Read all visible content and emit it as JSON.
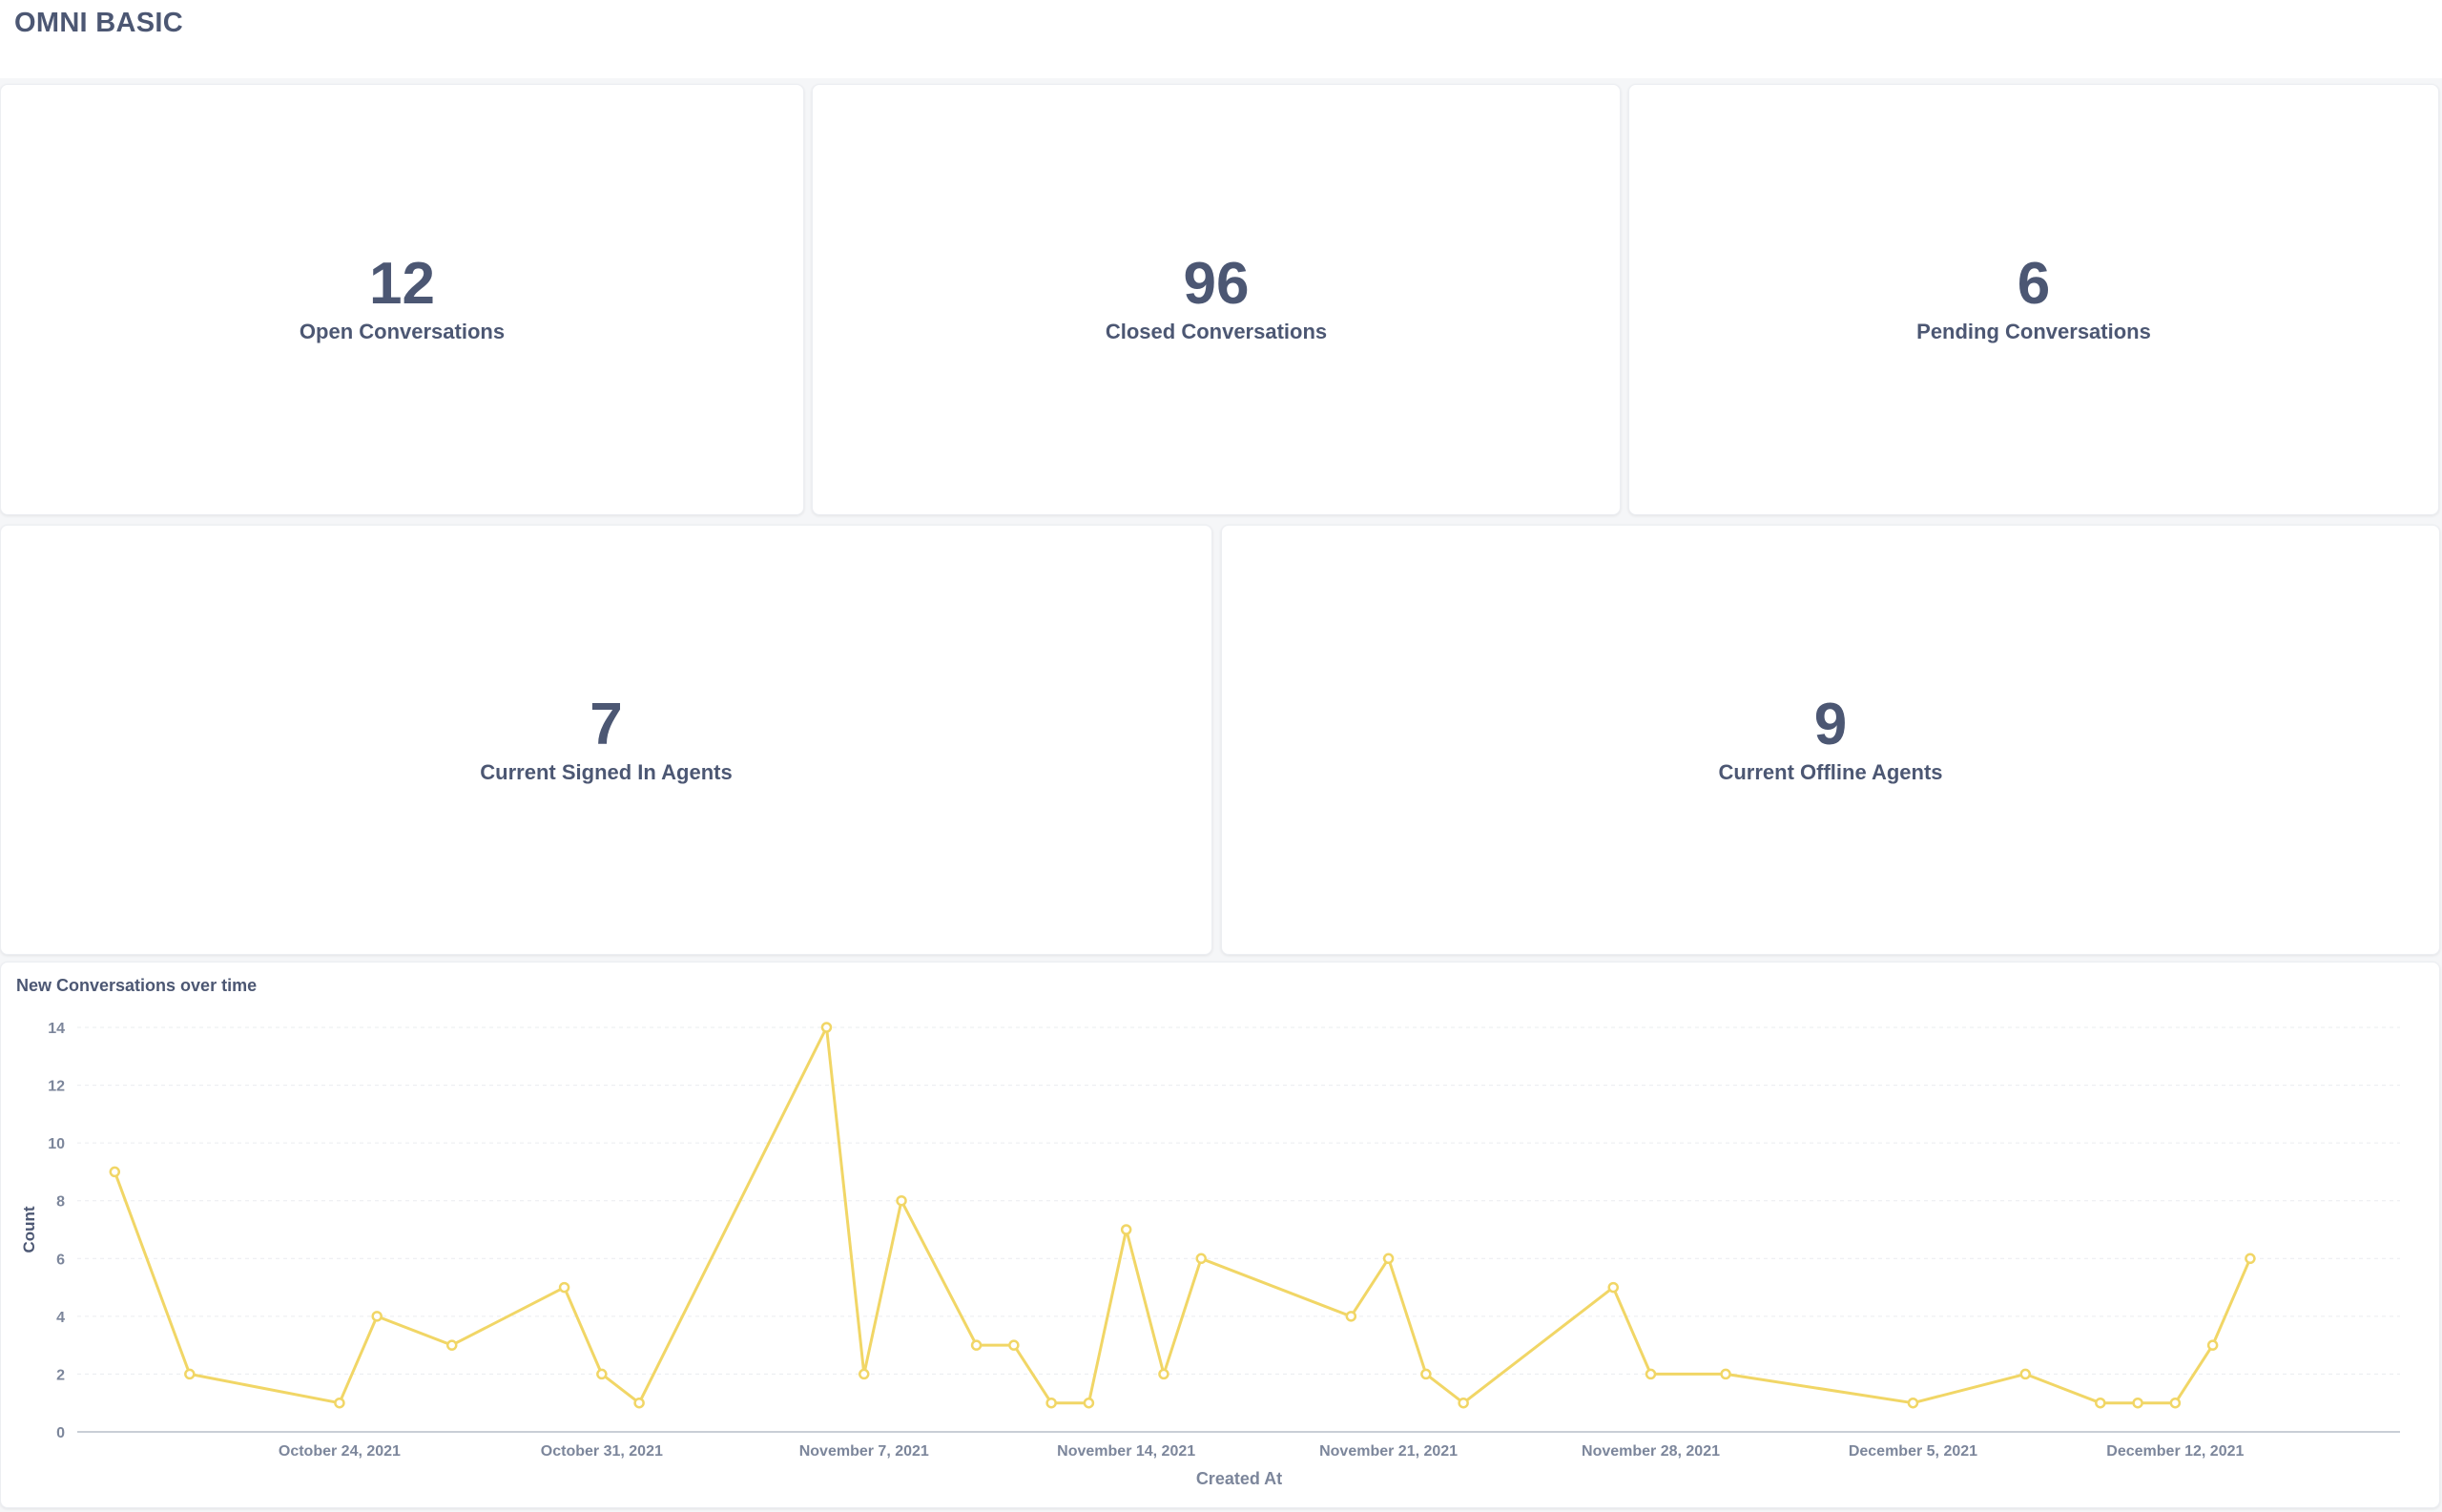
{
  "page": {
    "title": "OMNI BASIC"
  },
  "cards": [
    {
      "value": "12",
      "label": "Open Conversations"
    },
    {
      "value": "96",
      "label": "Closed Conversations"
    },
    {
      "value": "6",
      "label": "Pending Conversations"
    },
    {
      "value": "7",
      "label": "Current Signed In Agents"
    },
    {
      "value": "9",
      "label": "Current Offline Agents"
    }
  ],
  "colors": {
    "text": "#4c5773",
    "line": "#f1d666",
    "grid": "#eaecef",
    "axis": "#c9ced6"
  },
  "chart_data": {
    "type": "line",
    "title": "New Conversations over time",
    "xlabel": "Created At",
    "ylabel": "Count",
    "ylim": [
      0,
      14
    ],
    "yticks": [
      0,
      2,
      4,
      6,
      8,
      10,
      12,
      14
    ],
    "xlim": [
      "2021-10-17",
      "2021-12-18"
    ],
    "xticks": [
      {
        "date": "2021-10-24",
        "label": "October 24, 2021"
      },
      {
        "date": "2021-10-31",
        "label": "October 31, 2021"
      },
      {
        "date": "2021-11-07",
        "label": "November 7, 2021"
      },
      {
        "date": "2021-11-14",
        "label": "November 14, 2021"
      },
      {
        "date": "2021-11-21",
        "label": "November 21, 2021"
      },
      {
        "date": "2021-11-28",
        "label": "November 28, 2021"
      },
      {
        "date": "2021-12-05",
        "label": "December 5, 2021"
      },
      {
        "date": "2021-12-12",
        "label": "December 12, 2021"
      }
    ],
    "grid": true,
    "series": [
      {
        "values": [
          {
            "x": "2021-10-18",
            "y": 9
          },
          {
            "x": "2021-10-20",
            "y": 2
          },
          {
            "x": "2021-10-24",
            "y": 1
          },
          {
            "x": "2021-10-25",
            "y": 4
          },
          {
            "x": "2021-10-27",
            "y": 3
          },
          {
            "x": "2021-10-30",
            "y": 5
          },
          {
            "x": "2021-10-31",
            "y": 2
          },
          {
            "x": "2021-11-01",
            "y": 1
          },
          {
            "x": "2021-11-06",
            "y": 14
          },
          {
            "x": "2021-11-07",
            "y": 2
          },
          {
            "x": "2021-11-08",
            "y": 8
          },
          {
            "x": "2021-11-10",
            "y": 3
          },
          {
            "x": "2021-11-11",
            "y": 3
          },
          {
            "x": "2021-11-12",
            "y": 1
          },
          {
            "x": "2021-11-13",
            "y": 1
          },
          {
            "x": "2021-11-14",
            "y": 7
          },
          {
            "x": "2021-11-15",
            "y": 2
          },
          {
            "x": "2021-11-16",
            "y": 6
          },
          {
            "x": "2021-11-20",
            "y": 4
          },
          {
            "x": "2021-11-21",
            "y": 6
          },
          {
            "x": "2021-11-22",
            "y": 2
          },
          {
            "x": "2021-11-23",
            "y": 1
          },
          {
            "x": "2021-11-27",
            "y": 5
          },
          {
            "x": "2021-11-28",
            "y": 2
          },
          {
            "x": "2021-11-30",
            "y": 2
          },
          {
            "x": "2021-12-05",
            "y": 1
          },
          {
            "x": "2021-12-08",
            "y": 2
          },
          {
            "x": "2021-12-10",
            "y": 1
          },
          {
            "x": "2021-12-11",
            "y": 1
          },
          {
            "x": "2021-12-12",
            "y": 1
          },
          {
            "x": "2021-12-13",
            "y": 3
          },
          {
            "x": "2021-12-14",
            "y": 6
          }
        ]
      }
    ]
  }
}
